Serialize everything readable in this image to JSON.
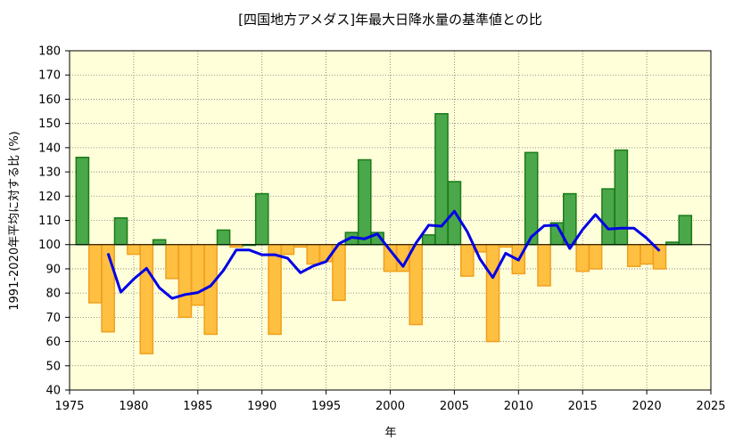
{
  "chart_data": {
    "type": "bar",
    "title": "[四国地方アメダス]年最大日降水量の基準値との比",
    "xlabel": "年",
    "ylabel": "1991-2020年平均に対する比 (%)",
    "xlim": [
      1975,
      2025
    ],
    "ylim": [
      40,
      180
    ],
    "baseline": 100,
    "grid": true,
    "x_ticks": [
      1975,
      1980,
      1985,
      1990,
      1995,
      2000,
      2005,
      2010,
      2015,
      2020,
      2025
    ],
    "y_ticks": [
      40,
      50,
      60,
      70,
      80,
      90,
      100,
      110,
      120,
      130,
      140,
      150,
      160,
      170,
      180
    ],
    "colors": {
      "plot_background": "#ffffd9",
      "above_fill": "#4aa84a",
      "above_stroke": "#1a7a1a",
      "below_fill": "#ffbf40",
      "below_stroke": "#f0a020",
      "line": "#0000e6",
      "grid": "#777777"
    },
    "bars": {
      "x": [
        1976,
        1977,
        1978,
        1979,
        1980,
        1981,
        1982,
        1983,
        1984,
        1985,
        1986,
        1987,
        1988,
        1989,
        1990,
        1991,
        1992,
        1993,
        1994,
        1995,
        1996,
        1997,
        1998,
        1999,
        2000,
        2001,
        2002,
        2003,
        2004,
        2005,
        2006,
        2007,
        2008,
        2009,
        2010,
        2011,
        2012,
        2013,
        2014,
        2015,
        2016,
        2017,
        2018,
        2019,
        2020,
        2021,
        2022,
        2023
      ],
      "values": [
        136,
        76,
        64,
        111,
        96,
        55,
        102,
        86,
        70,
        75,
        63,
        106,
        99,
        100,
        121,
        63,
        96,
        99,
        92,
        93,
        77,
        105,
        135,
        105,
        89,
        89,
        67,
        104,
        154,
        126,
        87,
        97,
        60,
        99,
        88,
        138,
        83,
        109,
        121,
        89,
        90,
        123,
        139,
        91,
        92,
        90,
        101,
        112
      ]
    },
    "series": [
      {
        "type": "line",
        "x": [
          1978,
          1979,
          1980,
          1981,
          1982,
          1983,
          1984,
          1985,
          1986,
          1987,
          1988,
          1989,
          1990,
          1991,
          1992,
          1993,
          1994,
          1995,
          1996,
          1997,
          1998,
          1999,
          2000,
          2001,
          2002,
          2003,
          2004,
          2005,
          2006,
          2007,
          2008,
          2009,
          2010,
          2011,
          2012,
          2013,
          2014,
          2015,
          2016,
          2017,
          2018,
          2019,
          2020,
          2021
        ],
        "values": [
          96.4,
          80.4,
          85.8,
          90.2,
          82.2,
          77.8,
          79.4,
          80.2,
          83.0,
          89.4,
          97.8,
          97.8,
          95.8,
          95.8,
          94.4,
          88.4,
          91.2,
          93.0,
          100.4,
          103.0,
          102.4,
          104.4,
          97.6,
          91.0,
          100.6,
          108.0,
          107.6,
          113.8,
          105.4,
          94.0,
          86.4,
          96.4,
          93.6,
          103.2,
          107.8,
          108.0,
          98.4,
          106.2,
          112.4,
          106.4,
          106.8,
          106.8,
          102.6,
          97.4
        ]
      }
    ]
  }
}
